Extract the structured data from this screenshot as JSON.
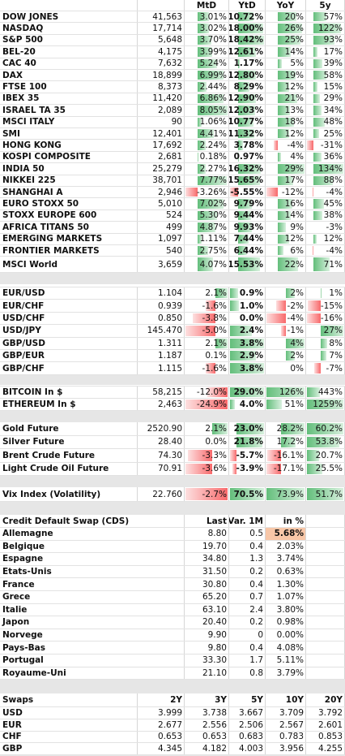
{
  "indices": {
    "header": [
      "MtD",
      "YtD",
      "YoY",
      "5y"
    ],
    "rows": [
      [
        "DOW JONES",
        "41,563",
        "3.01%",
        "10.72%",
        "20%",
        "57%"
      ],
      [
        "NASDAQ",
        "17,714",
        "3.02%",
        "18.00%",
        "26%",
        "122%"
      ],
      [
        "S&P 500",
        "5,648",
        "3.70%",
        "18.42%",
        "25%",
        "93%"
      ],
      [
        "BEL-20",
        "4,175",
        "3.99%",
        "12.61%",
        "14%",
        "17%"
      ],
      [
        "CAC 40",
        "7,632",
        "5.24%",
        "1.17%",
        "5%",
        "39%"
      ],
      [
        "DAX",
        "18,899",
        "6.99%",
        "12.80%",
        "19%",
        "58%"
      ],
      [
        "FTSE 100",
        "8,373",
        "2.44%",
        "8.29%",
        "12%",
        "15%"
      ],
      [
        "IBEX 35",
        "11,420",
        "6.86%",
        "12.90%",
        "21%",
        "29%"
      ],
      [
        "ISRAEL TA 35",
        "2,089",
        "8.05%",
        "12.03%",
        "13%",
        "34%"
      ],
      [
        "MSCI ITALY",
        "90",
        "1.06%",
        "10.77%",
        "18%",
        "48%"
      ],
      [
        "SMI",
        "12,401",
        "4.41%",
        "11.32%",
        "12%",
        "25%"
      ],
      [
        "HONG KONG",
        "17,692",
        "2.24%",
        "3.78%",
        "-4%",
        "-31%"
      ],
      [
        "KOSPI COMPOSITE",
        "2,681",
        "0.18%",
        "0.97%",
        "4%",
        "36%"
      ],
      [
        "INDIA 50",
        "25,279",
        "2.27%",
        "16.32%",
        "29%",
        "134%"
      ],
      [
        "NIKKEI 225",
        "38,701",
        "7.77%",
        "15.65%",
        "17%",
        "88%"
      ],
      [
        "SHANGHAI A",
        "2,946",
        "-3.26%",
        "-5.55%",
        "-12%",
        "-4%"
      ],
      [
        "EURO STOXX 50",
        "5,010",
        "7.02%",
        "9.79%",
        "16%",
        "45%"
      ],
      [
        "STOXX EUROPE 600",
        "524",
        "5.30%",
        "9.44%",
        "14%",
        "38%"
      ],
      [
        "AFRICA TITANS 50",
        "499",
        "4.87%",
        "9.93%",
        "9%",
        "-3%"
      ],
      [
        "EMERGING MARKETS",
        "1,097",
        "1.11%",
        "7.44%",
        "12%",
        "12%"
      ],
      [
        "FRONTIER MARKETS",
        "540",
        "2.75%",
        "6.44%",
        "6%",
        "-4%"
      ],
      [
        "MSCI World",
        "3,659",
        "4.07%",
        "15.53%",
        "22%",
        "71%"
      ]
    ]
  },
  "fx": {
    "rows": [
      [
        "EUR/USD",
        "1.104",
        "2.1%",
        "0.9%",
        "2%",
        "1%"
      ],
      [
        "EUR/CHF",
        "0.939",
        "-1.6%",
        "1.0%",
        "-2%",
        "-15%"
      ],
      [
        "USD/CHF",
        "0.850",
        "-3.8%",
        "0.0%",
        "-4%",
        "-16%"
      ],
      [
        "USD/JPY",
        "145.470",
        "-5.0%",
        "2.4%",
        "-1%",
        "27%"
      ],
      [
        "GBP/USD",
        "1.311",
        "2.1%",
        "3.8%",
        "4%",
        "8%"
      ],
      [
        "GBP/EUR",
        "1.187",
        "0.1%",
        "2.9%",
        "2%",
        "7%"
      ],
      [
        "GBP/CHF",
        "1.115",
        "-1.6%",
        "3.8%",
        "0%",
        "-7%"
      ]
    ]
  },
  "crypto": {
    "rows": [
      [
        "BITCOIN In $",
        "58,215",
        "-12.0%",
        "29.0%",
        "126%",
        "443%"
      ],
      [
        "ETHEREUM In $",
        "2,463",
        "-24.9%",
        "4.0%",
        "51%",
        "1259%"
      ]
    ]
  },
  "commodities": {
    "rows": [
      [
        "Gold Future",
        "2520.90",
        "2.1%",
        "23.0%",
        "28.2%",
        "60.2%"
      ],
      [
        "Silver Future",
        "28.40",
        "0.0%",
        "21.8%",
        "17.2%",
        "53.8%"
      ],
      [
        "Brent Crude Future",
        "74.30",
        "-3.3%",
        "-5.7%",
        "-16.1%",
        "20.7%"
      ],
      [
        "Light Crude Oil Future",
        "70.91",
        "-3.6%",
        "-3.9%",
        "-17.1%",
        "25.5%"
      ]
    ]
  },
  "volatility": {
    "rows": [
      [
        "Vix Index (Volatility)",
        "22.760",
        "-2.7%",
        "70.5%",
        "73.9%",
        "51.7%"
      ]
    ]
  },
  "cds": {
    "header": [
      "Credit Default Swap (CDS)",
      "Last",
      "Var. 1M",
      "in %"
    ],
    "rows": [
      [
        "Allemagne",
        "8.80",
        "0.5",
        "5.68%"
      ],
      [
        "Belgique",
        "19.70",
        "0.4",
        "2.03%"
      ],
      [
        "Espagne",
        "34.80",
        "1.3",
        "3.74%"
      ],
      [
        "Etats-Unis",
        "31.50",
        "0.2",
        "0.63%"
      ],
      [
        "France",
        "30.80",
        "0.4",
        "1.30%"
      ],
      [
        "Grece",
        "65.20",
        "0.7",
        "1.07%"
      ],
      [
        "Italie",
        "63.10",
        "2.4",
        "3.80%"
      ],
      [
        "Japon",
        "20.40",
        "0.2",
        "0.98%"
      ],
      [
        "Norvege",
        "9.90",
        "0",
        "0.00%"
      ],
      [
        "Pays-Bas",
        "9.80",
        "0.4",
        "4.08%"
      ],
      [
        "Portugal",
        "33.30",
        "1.7",
        "5.11%"
      ],
      [
        "Royaume-Uni",
        "21.10",
        "0.8",
        "3.79%"
      ]
    ]
  },
  "swaps": {
    "header": [
      "Swaps",
      "2Y",
      "3Y",
      "5Y",
      "10Y",
      "20Y"
    ],
    "rows": [
      [
        "USD",
        "3.999",
        "3.738",
        "3.667",
        "3.709",
        "3.792"
      ],
      [
        "EUR",
        "2.677",
        "2.556",
        "2.506",
        "2.567",
        "2.601"
      ],
      [
        "CHF",
        "0.653",
        "0.653",
        "0.683",
        "0.783",
        "0.853"
      ],
      [
        "GBP",
        "4.345",
        "4.182",
        "4.003",
        "3.956",
        "4.255"
      ]
    ]
  }
}
